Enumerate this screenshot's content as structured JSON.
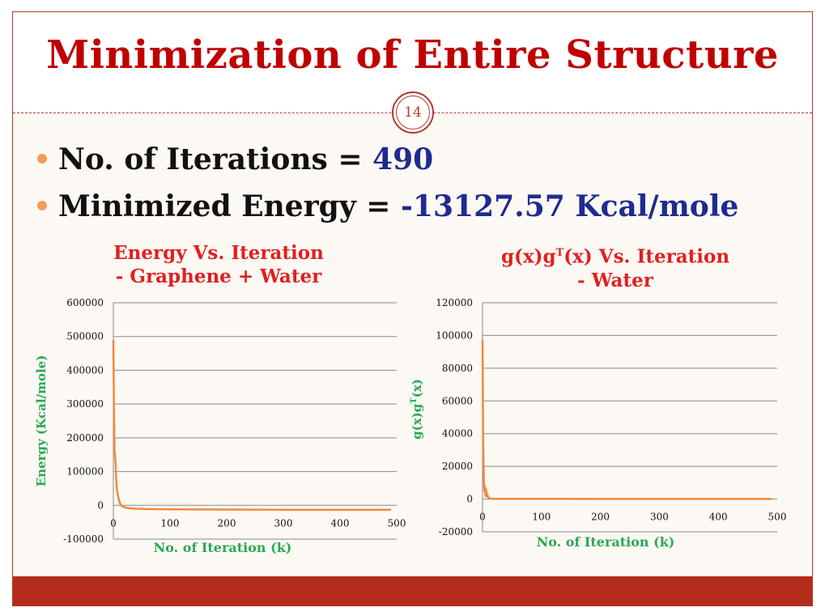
{
  "slide": {
    "title": "Minimization of Entire Structure",
    "page_number": "14",
    "bullets": [
      {
        "label": "No. of Iterations = ",
        "value": "490"
      },
      {
        "label": "Minimized Energy = ",
        "value": "-13127.57 Kcal/mole"
      }
    ]
  },
  "colors": {
    "title": "#c00000",
    "accent": "#b32c1a",
    "series": "#f08a3c",
    "axis_label": "#2aa853",
    "value": "#1f2b8f"
  },
  "chart_data": [
    {
      "type": "line",
      "title_line1": "Energy Vs. Iteration",
      "title_line2": "- Graphene + Water",
      "xlabel": "No. of  Iteration (k)",
      "ylabel": "Energy (Kcal/mole)",
      "xlim": [
        0,
        500
      ],
      "ylim": [
        -100000,
        600000
      ],
      "xticks": [
        0,
        100,
        200,
        300,
        400,
        500
      ],
      "yticks": [
        -100000,
        0,
        100000,
        200000,
        300000,
        400000,
        500000,
        600000
      ],
      "ytick_labels": [
        "-100000",
        "0",
        "100000",
        "200000",
        "300000",
        "400000",
        "500000",
        "600000"
      ],
      "grid": true,
      "series": [
        {
          "x": [
            0,
            1,
            2,
            3,
            4,
            5,
            6,
            8,
            10,
            12,
            15,
            20,
            30,
            40,
            60,
            100,
            200,
            300,
            400,
            490
          ],
          "y": [
            490000,
            300000,
            160000,
            150000,
            120000,
            80000,
            50000,
            30000,
            15000,
            5000,
            -2000,
            -6000,
            -9000,
            -10000,
            -11000,
            -12000,
            -12500,
            -13000,
            -13100,
            -13127.57
          ]
        }
      ]
    },
    {
      "type": "line",
      "title_line1": "g(x)g",
      "title_sup": "T",
      "title_line1_rest": "(x)  Vs. Iteration",
      "title_line2": "- Water",
      "xlabel": "No. of Iteration (k)",
      "ylabel_main": "g(x)g",
      "ylabel_sup": "T",
      "ylabel_rest": "(x)",
      "xlim": [
        0,
        500
      ],
      "ylim": [
        -20000,
        120000
      ],
      "xticks": [
        0,
        100,
        200,
        300,
        400,
        500
      ],
      "yticks": [
        -20000,
        0,
        20000,
        40000,
        60000,
        80000,
        100000,
        120000
      ],
      "ytick_labels": [
        "-20000",
        "0",
        "20000",
        "40000",
        "60000",
        "80000",
        "100000",
        "120000"
      ],
      "grid": true,
      "series": [
        {
          "x": [
            0,
            1,
            2,
            3,
            4,
            5,
            6,
            7,
            8,
            10,
            12,
            15,
            20,
            50,
            100,
            200,
            300,
            400,
            490
          ],
          "y": [
            97000,
            40000,
            15000,
            5000,
            8000,
            2000,
            6000,
            1500,
            3000,
            800,
            500,
            300,
            200,
            150,
            120,
            100,
            100,
            100,
            100
          ]
        }
      ]
    }
  ]
}
